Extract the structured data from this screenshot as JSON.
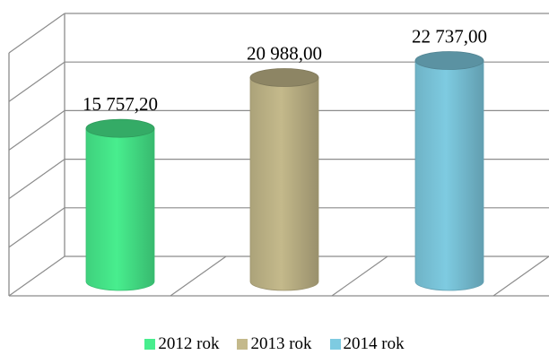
{
  "chart_data": {
    "type": "bar",
    "style": "3d-cylinder",
    "categories": [
      "2012 rok",
      "2013 rok",
      "2014 rok"
    ],
    "values": [
      15757.2,
      20988.0,
      22737.0
    ],
    "value_labels": [
      "15 757,20",
      "20 988,00",
      "22 737,00"
    ],
    "ylim": [
      0,
      25000
    ],
    "grid": true,
    "legend": "bottom",
    "series": [
      {
        "name": "2012 rok",
        "color": "#48ee8e"
      },
      {
        "name": "2013 rok",
        "color": "#c4b98b"
      },
      {
        "name": "2014 rok",
        "color": "#7ecbe1"
      }
    ],
    "title": "",
    "xlabel": "",
    "ylabel": ""
  }
}
